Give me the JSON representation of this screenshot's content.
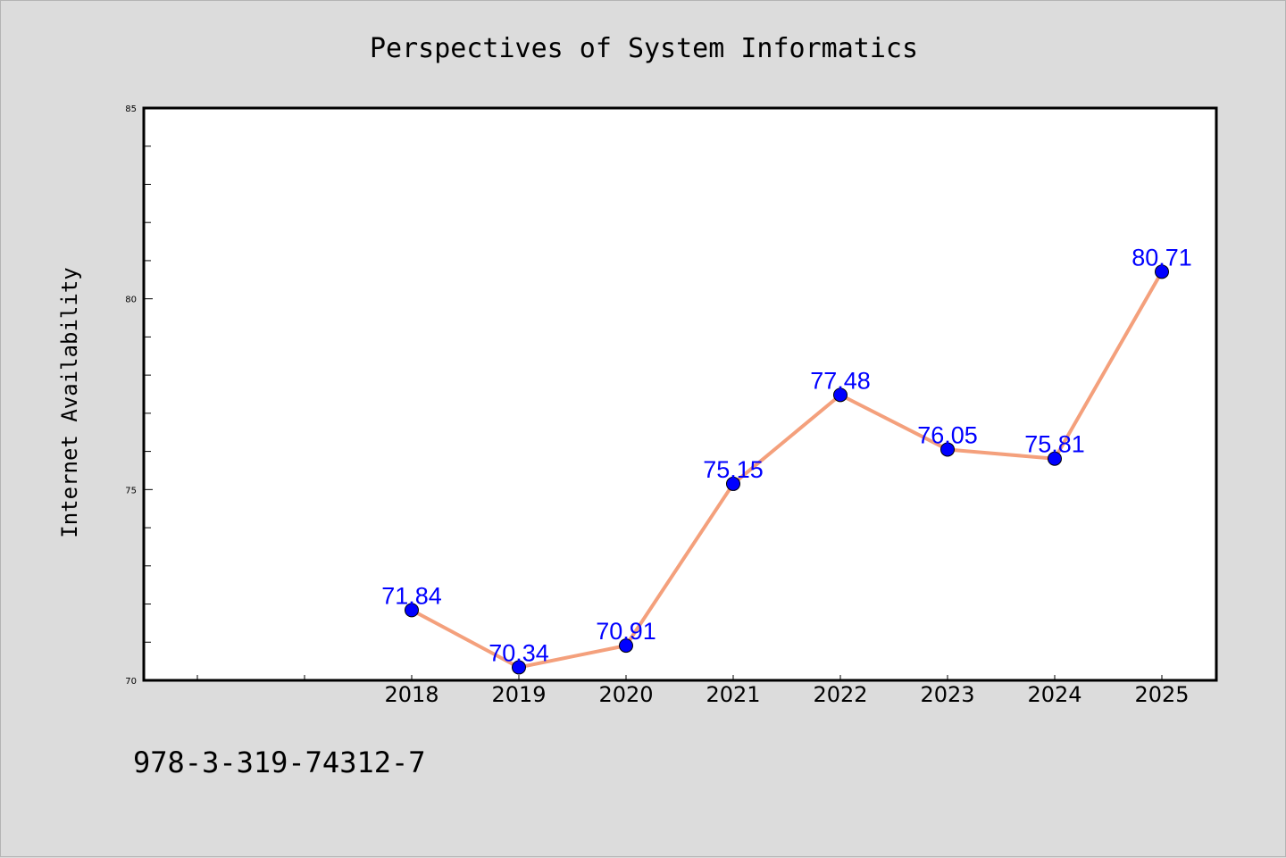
{
  "chart_data": {
    "type": "line",
    "title": "Perspectives of System Informatics",
    "ylabel": "Internet Availability",
    "xlabel": "",
    "x": [
      "2018",
      "2019",
      "2020",
      "2021",
      "2022",
      "2023",
      "2024",
      "2025"
    ],
    "values": [
      71.84,
      70.34,
      70.91,
      75.15,
      77.48,
      76.05,
      75.81,
      80.71
    ],
    "data_labels": [
      "71.84",
      "70.34",
      "70.91",
      "75.15",
      "77.48",
      "76.05",
      "75.81",
      "80.71"
    ],
    "ylim": [
      70,
      85
    ],
    "yticks": [
      "70",
      "75",
      "80",
      "85"
    ],
    "grid": false,
    "line_color": "#f4a07c",
    "marker_color": "#0000ff",
    "label_color": "#0000ff"
  },
  "footer": {
    "isbn": "978-3-319-74312-7"
  }
}
